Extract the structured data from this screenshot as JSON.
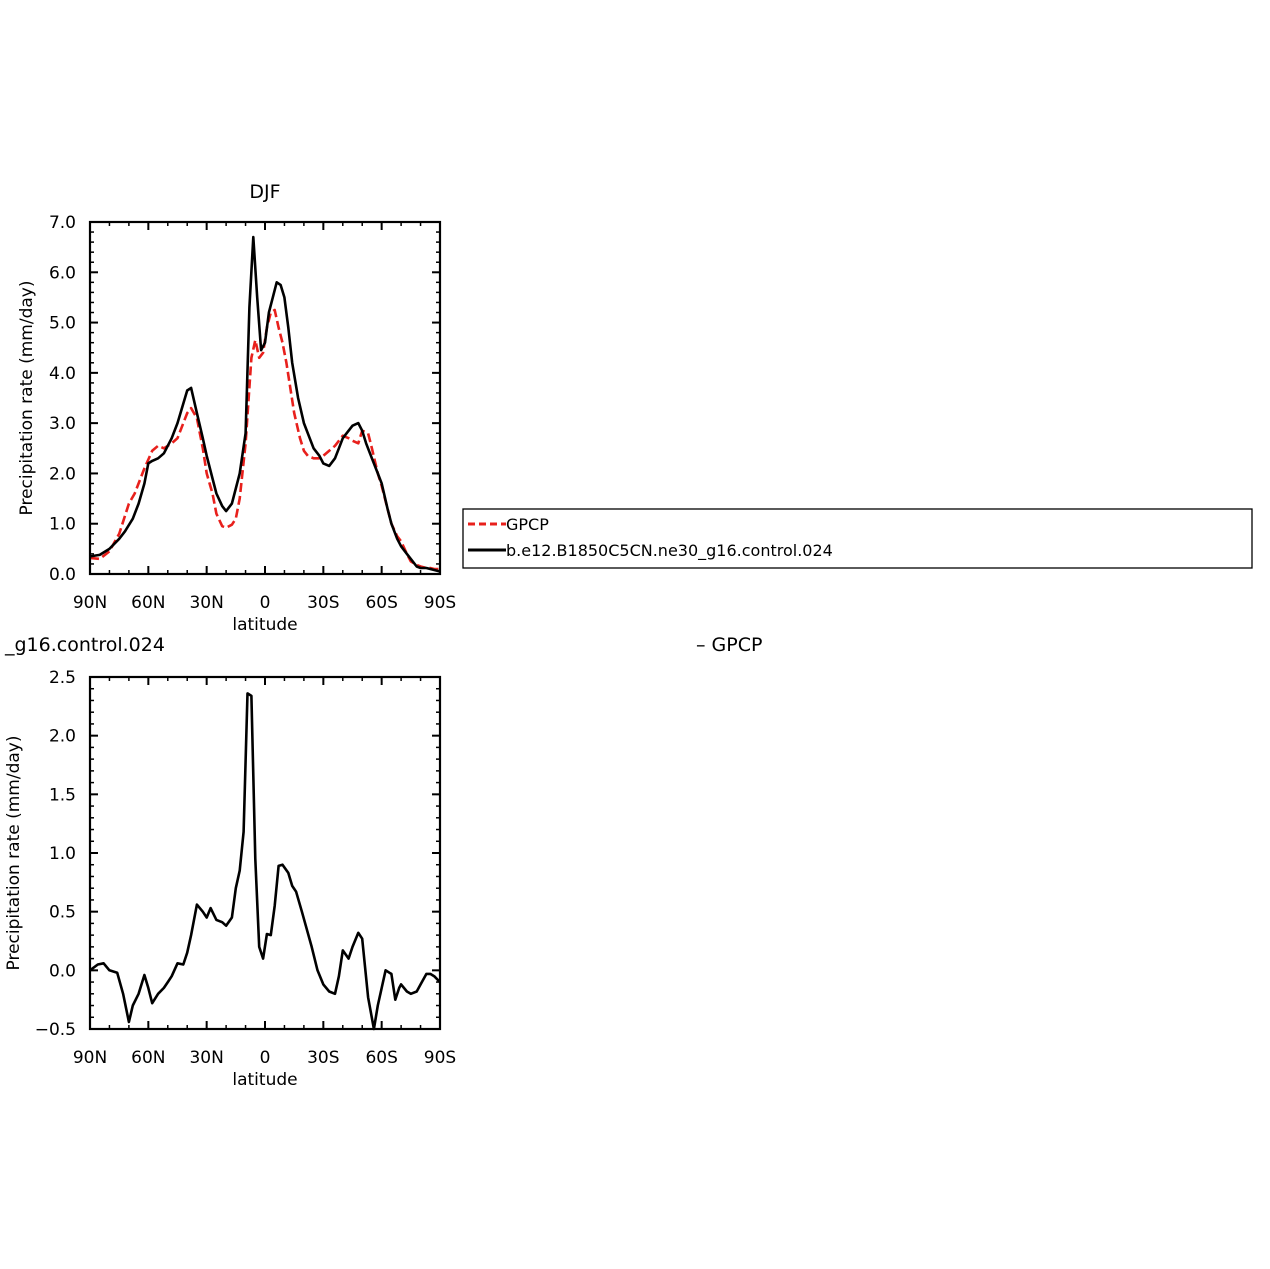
{
  "chart_data": [
    {
      "type": "line",
      "title": "DJF",
      "xlabel": "latitude",
      "ylabel": "Precipitation rate (mm/day)",
      "xlim": [
        -90,
        90
      ],
      "ylim": [
        0.0,
        7.0
      ],
      "x_ticks": [
        {
          "value": -90,
          "label": "90N"
        },
        {
          "value": -60,
          "label": "60N"
        },
        {
          "value": -30,
          "label": "30N"
        },
        {
          "value": 0,
          "label": "0"
        },
        {
          "value": 30,
          "label": "30S"
        },
        {
          "value": 60,
          "label": "60S"
        },
        {
          "value": 90,
          "label": "90S"
        }
      ],
      "y_ticks": [
        {
          "value": 0.0,
          "label": "0.0"
        },
        {
          "value": 1.0,
          "label": "1.0"
        },
        {
          "value": 2.0,
          "label": "2.0"
        },
        {
          "value": 3.0,
          "label": "3.0"
        },
        {
          "value": 4.0,
          "label": "4.0"
        },
        {
          "value": 5.0,
          "label": "5.0"
        },
        {
          "value": 6.0,
          "label": "6.0"
        },
        {
          "value": 7.0,
          "label": "7.0"
        }
      ],
      "legend_position": "right",
      "series": [
        {
          "name": "GPCP",
          "color": "#e8201c",
          "dash": true,
          "x": [
            -90,
            -85,
            -80,
            -75,
            -70,
            -67,
            -62,
            -58,
            -55,
            -52,
            -48,
            -45,
            -40,
            -38,
            -35,
            -32,
            -30,
            -27,
            -25,
            -22,
            -20,
            -17,
            -15,
            -13,
            -10,
            -7,
            -5,
            -3,
            -1,
            1,
            3,
            5,
            7,
            9,
            11,
            13,
            15,
            18,
            20,
            22,
            25,
            28,
            30,
            33,
            36,
            40,
            43,
            45,
            48,
            50,
            53,
            55,
            58,
            60,
            63,
            65,
            68,
            70,
            73,
            75,
            78,
            80,
            83,
            85,
            87,
            90
          ],
          "y": [
            0.32,
            0.3,
            0.45,
            0.8,
            1.4,
            1.6,
            2.1,
            2.45,
            2.55,
            2.5,
            2.6,
            2.7,
            3.2,
            3.3,
            3.1,
            2.5,
            2.0,
            1.6,
            1.2,
            0.95,
            0.92,
            0.98,
            1.1,
            1.5,
            2.6,
            4.3,
            4.65,
            4.3,
            4.4,
            4.9,
            5.2,
            5.25,
            4.9,
            4.6,
            4.2,
            3.7,
            3.2,
            2.7,
            2.45,
            2.35,
            2.3,
            2.3,
            2.35,
            2.45,
            2.55,
            2.75,
            2.7,
            2.65,
            2.6,
            2.85,
            2.8,
            2.5,
            2.0,
            1.75,
            1.3,
            1.0,
            0.75,
            0.65,
            0.4,
            0.25,
            0.18,
            0.15,
            0.12,
            0.12,
            0.1,
            0.1
          ]
        },
        {
          "name": "b.e12.B1850C5CN.ne30_g16.control.024",
          "color": "#000000",
          "dash": false,
          "x": [
            -90,
            -85,
            -80,
            -75,
            -72,
            -68,
            -65,
            -62,
            -60,
            -58,
            -55,
            -52,
            -48,
            -45,
            -40,
            -38,
            -35,
            -32,
            -30,
            -27,
            -25,
            -22,
            -20,
            -17,
            -15,
            -13,
            -10,
            -8,
            -6,
            -4,
            -2,
            0,
            2,
            4,
            6,
            8,
            10,
            12,
            14,
            17,
            20,
            23,
            25,
            28,
            30,
            33,
            36,
            38,
            40,
            43,
            45,
            48,
            50,
            52,
            55,
            58,
            60,
            63,
            65,
            68,
            70,
            73,
            75,
            78,
            80,
            83,
            85,
            87,
            90
          ],
          "y": [
            0.35,
            0.38,
            0.5,
            0.7,
            0.85,
            1.1,
            1.4,
            1.8,
            2.2,
            2.25,
            2.3,
            2.4,
            2.7,
            3.0,
            3.65,
            3.7,
            3.2,
            2.7,
            2.35,
            1.9,
            1.6,
            1.35,
            1.25,
            1.4,
            1.7,
            2.0,
            2.8,
            5.3,
            6.7,
            5.5,
            4.45,
            4.6,
            5.2,
            5.5,
            5.8,
            5.75,
            5.5,
            4.9,
            4.2,
            3.5,
            3.0,
            2.7,
            2.5,
            2.35,
            2.2,
            2.15,
            2.3,
            2.5,
            2.7,
            2.85,
            2.95,
            3.0,
            2.85,
            2.6,
            2.3,
            2.0,
            1.8,
            1.3,
            1.0,
            0.7,
            0.55,
            0.4,
            0.3,
            0.15,
            0.12,
            0.12,
            0.1,
            0.08,
            0.05
          ]
        }
      ]
    },
    {
      "type": "line",
      "title_left": "_g16.control.024",
      "title_right": "– GPCP",
      "xlabel": "latitude",
      "ylabel": "Precipitation rate (mm/day)",
      "xlim": [
        -90,
        90
      ],
      "ylim": [
        -0.5,
        2.5
      ],
      "x_ticks": [
        {
          "value": -90,
          "label": "90N"
        },
        {
          "value": -60,
          "label": "60N"
        },
        {
          "value": -30,
          "label": "30N"
        },
        {
          "value": 0,
          "label": "0"
        },
        {
          "value": 30,
          "label": "30S"
        },
        {
          "value": 60,
          "label": "60S"
        },
        {
          "value": 90,
          "label": "90S"
        }
      ],
      "y_ticks": [
        {
          "value": -0.5,
          "label": "−0.5"
        },
        {
          "value": 0.0,
          "label": "0.0"
        },
        {
          "value": 0.5,
          "label": "0.5"
        },
        {
          "value": 1.0,
          "label": "1.0"
        },
        {
          "value": 1.5,
          "label": "1.5"
        },
        {
          "value": 2.0,
          "label": "2.0"
        },
        {
          "value": 2.5,
          "label": "2.5"
        }
      ],
      "series": [
        {
          "color": "#000000",
          "dash": false,
          "x": [
            -90,
            -86,
            -83,
            -80,
            -76,
            -73,
            -70,
            -68,
            -65,
            -62,
            -60,
            -58,
            -55,
            -52,
            -50,
            -48,
            -45,
            -42,
            -40,
            -38,
            -35,
            -32,
            -30,
            -28,
            -25,
            -22,
            -20,
            -17,
            -15,
            -13,
            -11,
            -9,
            -7,
            -5,
            -3,
            -1,
            1,
            3,
            5,
            7,
            9,
            12,
            14,
            16,
            19,
            21,
            24,
            27,
            30,
            33,
            36,
            38,
            40,
            43,
            45,
            48,
            50,
            53,
            56,
            58,
            60,
            62,
            64,
            65,
            67,
            69,
            70,
            73,
            75,
            78,
            80,
            83,
            85,
            87,
            90
          ],
          "y": [
            0.0,
            0.05,
            0.06,
            0.0,
            -0.02,
            -0.2,
            -0.44,
            -0.3,
            -0.2,
            -0.04,
            -0.15,
            -0.28,
            -0.2,
            -0.15,
            -0.1,
            -0.05,
            0.06,
            0.05,
            0.15,
            0.3,
            0.56,
            0.5,
            0.45,
            0.53,
            0.43,
            0.41,
            0.38,
            0.45,
            0.7,
            0.85,
            1.18,
            2.36,
            2.34,
            0.95,
            0.2,
            0.1,
            0.31,
            0.3,
            0.55,
            0.89,
            0.9,
            0.83,
            0.72,
            0.67,
            0.5,
            0.38,
            0.2,
            0.0,
            -0.12,
            -0.18,
            -0.2,
            -0.05,
            0.17,
            0.1,
            0.2,
            0.32,
            0.27,
            -0.23,
            -0.5,
            -0.3,
            -0.15,
            0.0,
            -0.02,
            -0.03,
            -0.25,
            -0.15,
            -0.12,
            -0.18,
            -0.2,
            -0.18,
            -0.12,
            -0.03,
            -0.03,
            -0.05,
            -0.1
          ]
        }
      ]
    }
  ]
}
